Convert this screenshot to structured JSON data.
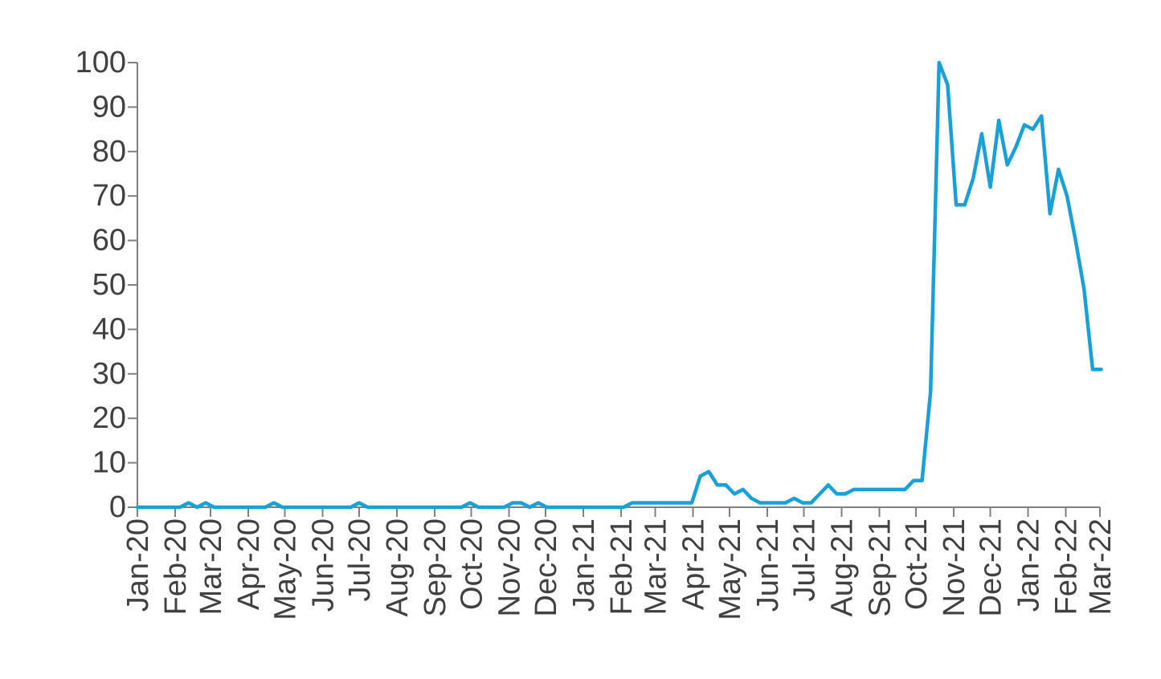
{
  "chart_data": {
    "type": "line",
    "title": "",
    "xlabel": "",
    "ylabel": "",
    "ylim": [
      0,
      100
    ],
    "y_ticks": [
      0,
      10,
      20,
      30,
      40,
      50,
      60,
      70,
      80,
      90,
      100
    ],
    "grid": false,
    "legend": "none",
    "x_tick_labels": [
      "Jan-20",
      "Feb-20",
      "Mar-20",
      "Apr-20",
      "May-20",
      "Jun-20",
      "Jul-20",
      "Aug-20",
      "Sep-20",
      "Oct-20",
      "Nov-20",
      "Dec-20",
      "Jan-21",
      "Feb-21",
      "Mar-21",
      "Apr-21",
      "May-21",
      "Jun-21",
      "Jul-21",
      "Aug-21",
      "Sep-21",
      "Oct-21",
      "Nov-21",
      "Dec-21",
      "Jan-22",
      "Feb-22",
      "Mar-22"
    ],
    "series": [
      {
        "color": "#1aa0d8",
        "points": [
          [
            "2020-01-01",
            0
          ],
          [
            "2020-01-08",
            0
          ],
          [
            "2020-01-15",
            0
          ],
          [
            "2020-01-22",
            0
          ],
          [
            "2020-01-29",
            0
          ],
          [
            "2020-02-05",
            0
          ],
          [
            "2020-02-12",
            1
          ],
          [
            "2020-02-19",
            0
          ],
          [
            "2020-02-26",
            1
          ],
          [
            "2020-03-04",
            0
          ],
          [
            "2020-03-11",
            0
          ],
          [
            "2020-03-18",
            0
          ],
          [
            "2020-03-25",
            0
          ],
          [
            "2020-04-01",
            0
          ],
          [
            "2020-04-08",
            0
          ],
          [
            "2020-04-15",
            0
          ],
          [
            "2020-04-22",
            1
          ],
          [
            "2020-04-29",
            0
          ],
          [
            "2020-05-06",
            0
          ],
          [
            "2020-05-13",
            0
          ],
          [
            "2020-05-20",
            0
          ],
          [
            "2020-05-27",
            0
          ],
          [
            "2020-06-03",
            0
          ],
          [
            "2020-06-10",
            0
          ],
          [
            "2020-06-17",
            0
          ],
          [
            "2020-06-24",
            0
          ],
          [
            "2020-07-01",
            1
          ],
          [
            "2020-07-08",
            0
          ],
          [
            "2020-07-15",
            0
          ],
          [
            "2020-07-22",
            0
          ],
          [
            "2020-07-29",
            0
          ],
          [
            "2020-08-05",
            0
          ],
          [
            "2020-08-12",
            0
          ],
          [
            "2020-08-19",
            0
          ],
          [
            "2020-08-26",
            0
          ],
          [
            "2020-09-02",
            0
          ],
          [
            "2020-09-09",
            0
          ],
          [
            "2020-09-16",
            0
          ],
          [
            "2020-09-23",
            0
          ],
          [
            "2020-09-30",
            1
          ],
          [
            "2020-10-07",
            0
          ],
          [
            "2020-10-14",
            0
          ],
          [
            "2020-10-21",
            0
          ],
          [
            "2020-10-28",
            0
          ],
          [
            "2020-11-04",
            1
          ],
          [
            "2020-11-11",
            1
          ],
          [
            "2020-11-18",
            0
          ],
          [
            "2020-11-25",
            1
          ],
          [
            "2020-12-02",
            0
          ],
          [
            "2020-12-09",
            0
          ],
          [
            "2020-12-16",
            0
          ],
          [
            "2020-12-23",
            0
          ],
          [
            "2020-12-30",
            0
          ],
          [
            "2021-01-06",
            0
          ],
          [
            "2021-01-13",
            0
          ],
          [
            "2021-01-20",
            0
          ],
          [
            "2021-01-27",
            0
          ],
          [
            "2021-02-03",
            0
          ],
          [
            "2021-02-10",
            1
          ],
          [
            "2021-02-17",
            1
          ],
          [
            "2021-02-24",
            1
          ],
          [
            "2021-03-03",
            1
          ],
          [
            "2021-03-10",
            1
          ],
          [
            "2021-03-17",
            1
          ],
          [
            "2021-03-24",
            1
          ],
          [
            "2021-03-31",
            1
          ],
          [
            "2021-04-07",
            7
          ],
          [
            "2021-04-14",
            8
          ],
          [
            "2021-04-21",
            5
          ],
          [
            "2021-04-28",
            5
          ],
          [
            "2021-05-05",
            3
          ],
          [
            "2021-05-12",
            4
          ],
          [
            "2021-05-19",
            2
          ],
          [
            "2021-05-26",
            1
          ],
          [
            "2021-06-02",
            1
          ],
          [
            "2021-06-09",
            1
          ],
          [
            "2021-06-16",
            1
          ],
          [
            "2021-06-23",
            2
          ],
          [
            "2021-06-30",
            1
          ],
          [
            "2021-07-07",
            1
          ],
          [
            "2021-07-14",
            3
          ],
          [
            "2021-07-21",
            5
          ],
          [
            "2021-07-28",
            3
          ],
          [
            "2021-08-04",
            3
          ],
          [
            "2021-08-11",
            4
          ],
          [
            "2021-08-18",
            4
          ],
          [
            "2021-08-25",
            4
          ],
          [
            "2021-09-01",
            4
          ],
          [
            "2021-09-08",
            4
          ],
          [
            "2021-09-15",
            4
          ],
          [
            "2021-09-22",
            4
          ],
          [
            "2021-09-29",
            6
          ],
          [
            "2021-10-06",
            6
          ],
          [
            "2021-10-13",
            26
          ],
          [
            "2021-10-20",
            100
          ],
          [
            "2021-10-27",
            95
          ],
          [
            "2021-11-03",
            68
          ],
          [
            "2021-11-10",
            68
          ],
          [
            "2021-11-17",
            74
          ],
          [
            "2021-11-24",
            84
          ],
          [
            "2021-12-01",
            72
          ],
          [
            "2021-12-08",
            87
          ],
          [
            "2021-12-15",
            77
          ],
          [
            "2021-12-22",
            81
          ],
          [
            "2021-12-29",
            86
          ],
          [
            "2022-01-05",
            85
          ],
          [
            "2022-01-12",
            88
          ],
          [
            "2022-01-19",
            66
          ],
          [
            "2022-01-26",
            76
          ],
          [
            "2022-02-02",
            70
          ],
          [
            "2022-02-09",
            60
          ],
          [
            "2022-02-16",
            49
          ],
          [
            "2022-02-23",
            31
          ],
          [
            "2022-03-02",
            31
          ]
        ]
      }
    ]
  }
}
